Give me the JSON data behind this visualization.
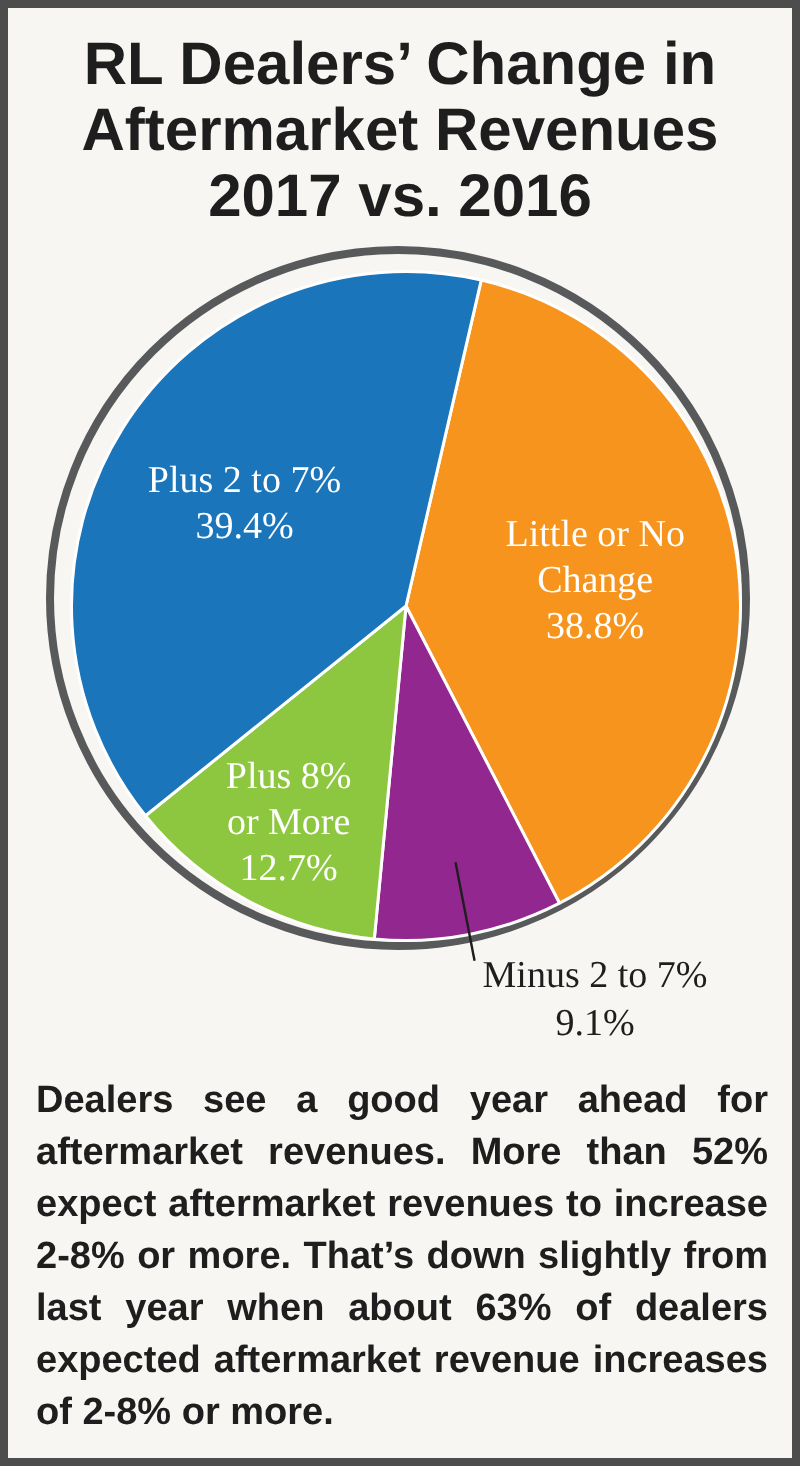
{
  "chart_data": {
    "type": "pie",
    "title": "RL Dealers’ Change in Aftermarket Revenues 2017 vs. 2016",
    "categories": [
      "Little or No Change",
      "Minus 2 to 7%",
      "Plus 8% or More",
      "Plus 2 to 7%"
    ],
    "values": [
      38.8,
      9.1,
      12.7,
      39.4
    ],
    "value_labels": [
      "38.8%",
      "9.1%",
      "12.7%",
      "39.4%"
    ],
    "colors": [
      "#f7941d",
      "#92278f",
      "#8dc63f",
      "#1b75bb"
    ],
    "legend": false,
    "annotations": [
      "Dealers see a good year ahead for aftermarket revenues. More than 52% expect aftermarket revenues to increase 2-8% or more. That’s down slightly from last year when about 63% of dealers expected aftermarket revenue increases of 2-8% or more."
    ]
  }
}
